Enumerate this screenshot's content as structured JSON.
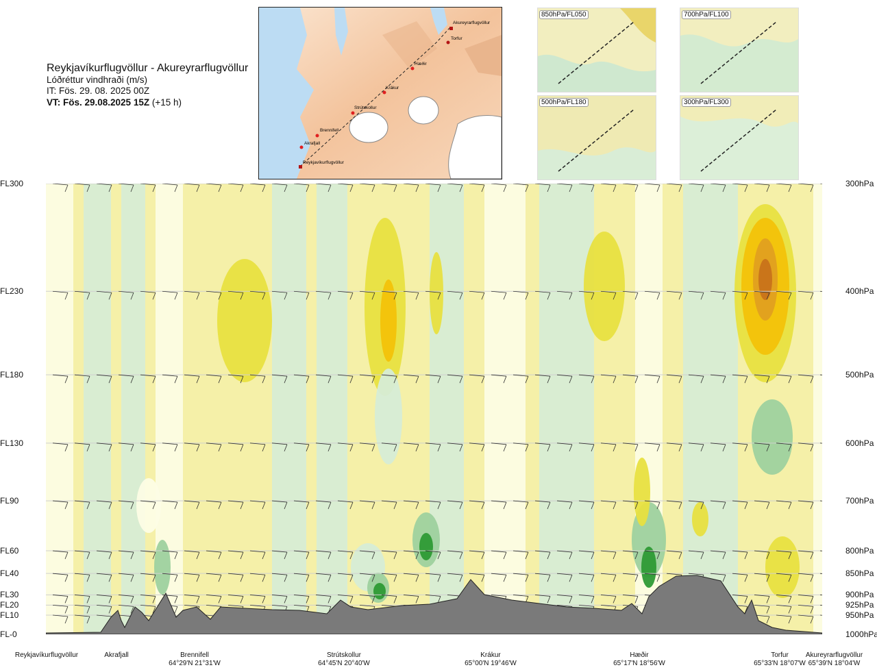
{
  "header": {
    "route_title": "Reykjavíkurflugvöllur - Akureyrarflugvöllur",
    "parameter": "Lóðréttur vindhraði (m/s)",
    "issue_time": "IT: Fös. 29. 08. 2025 00Z",
    "valid_time": "VT: Fös. 29.08.2025 15Z",
    "valid_offset": "(+15 h)"
  },
  "route_map": {
    "waypoints": [
      "Akureyrarflugvöllur",
      "Torfur",
      "Hæðir",
      "Krákur",
      "Strútskollur",
      "Brennifell",
      "Akrafjall",
      "Reykjavíkurflugvöllur"
    ]
  },
  "level_maps": [
    {
      "label": "850hPa/FL050"
    },
    {
      "label": "700hPa/FL100"
    },
    {
      "label": "500hPa/FL180"
    },
    {
      "label": "300hPa/FL300"
    }
  ],
  "chart_data": {
    "type": "heatmap",
    "title": "Lóðréttur vindhraði (m/s)",
    "left_axis_labels": [
      "FL300",
      "FL230",
      "FL180",
      "FL130",
      "FL90",
      "FL60",
      "FL40",
      "FL30",
      "FL20",
      "FL10",
      "FL-0"
    ],
    "right_axis_labels": [
      "300hPa",
      "400hPa",
      "500hPa",
      "600hPa",
      "700hPa",
      "800hPa",
      "850hPa",
      "900hPa",
      "925hPa",
      "950hPa",
      "1000hPa"
    ],
    "pressure_levels_hPa": [
      300,
      400,
      500,
      600,
      700,
      800,
      850,
      900,
      925,
      950,
      1000
    ],
    "ylim_hPa": [
      1000,
      300
    ],
    "locations": [
      {
        "name": "Reykjavíkurflugvöllur",
        "coord": ""
      },
      {
        "name": "Akrafjall",
        "coord": ""
      },
      {
        "name": "Brennifell",
        "coord": "64°29'N 21°31'W"
      },
      {
        "name": "Strútskollur",
        "coord": "64°45'N 20°40'W"
      },
      {
        "name": "Krákur",
        "coord": "65°00'N 19°46'W"
      },
      {
        "name": "Hæðir",
        "coord": "65°17'N 18°56'W"
      },
      {
        "name": "Torfur",
        "coord": "65°33'N 18°07'W"
      },
      {
        "name": "Akureyrarflugvöllur",
        "coord": "65°39'N 18°04'W"
      }
    ],
    "colors": {
      "strong_down": "#f3c20a",
      "moderate_down": "#e8e040",
      "weak_down": "#f5f0a8",
      "near_zero": "#fdfde5",
      "weak_up": "#d6ecd6",
      "moderate_up": "#9ed19e",
      "strong_up": "#2e9a35",
      "max_down": "#c8731a",
      "terrain": "#7a7a7a"
    }
  }
}
